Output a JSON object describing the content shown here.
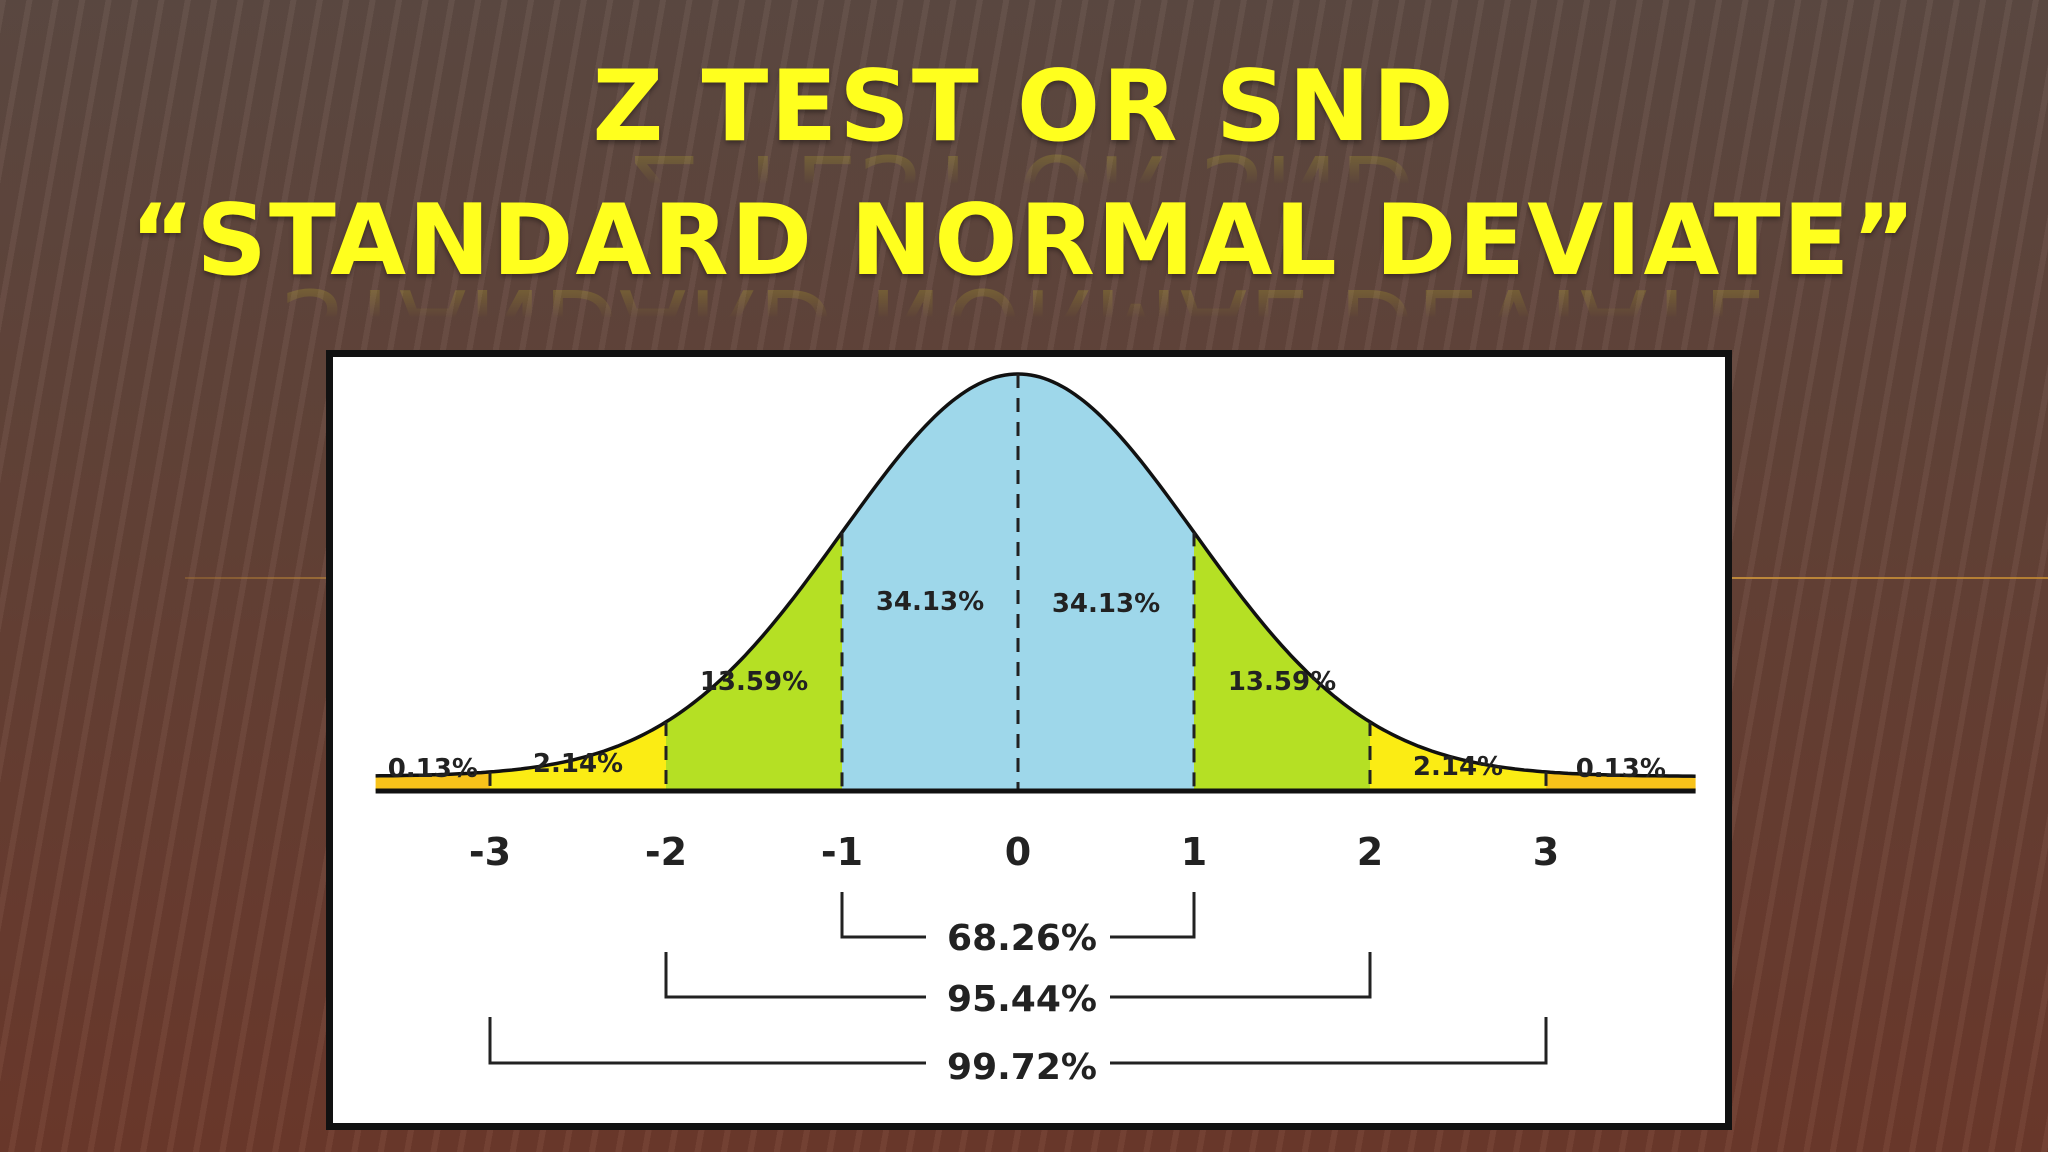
{
  "slide": {
    "title_line1": "Z TEST OR SND",
    "title_line2": "“STANDARD NORMAL DEVIATE”"
  },
  "colors": {
    "title": "#ffff1e",
    "center": "#9ed7ea",
    "inner": "#b5e024",
    "outer": "#fbec14",
    "tail": "#f7c21a"
  },
  "chart_data": {
    "type": "area",
    "title": "",
    "xlabel": "",
    "ylabel": "",
    "xlim": [
      -3.65,
      3.85
    ],
    "x_ticks": [
      "-3",
      "-2",
      "-1",
      "0",
      "1",
      "2",
      "3"
    ],
    "x_tick_values": [
      -3,
      -2,
      -1,
      0,
      1,
      2,
      3
    ],
    "segments": [
      {
        "from": -3.65,
        "to": -3,
        "label": "0.13%",
        "value": 0.13,
        "color": "tail"
      },
      {
        "from": -3,
        "to": -2,
        "label": "2.14%",
        "value": 2.14,
        "color": "outer"
      },
      {
        "from": -2,
        "to": -1,
        "label": "13.59%",
        "value": 13.59,
        "color": "inner"
      },
      {
        "from": -1,
        "to": 0,
        "label": "34.13%",
        "value": 34.13,
        "color": "center"
      },
      {
        "from": 0,
        "to": 1,
        "label": "34.13%",
        "value": 34.13,
        "color": "center"
      },
      {
        "from": 1,
        "to": 2,
        "label": "13.59%",
        "value": 13.59,
        "color": "inner"
      },
      {
        "from": 2,
        "to": 3,
        "label": "2.14%",
        "value": 2.14,
        "color": "outer"
      },
      {
        "from": 3,
        "to": 3.85,
        "label": "0.13%",
        "value": 0.13,
        "color": "tail"
      }
    ],
    "brackets": [
      {
        "from": -1,
        "to": 1,
        "label": "68.26%",
        "value": 68.26
      },
      {
        "from": -2,
        "to": 2,
        "label": "95.44%",
        "value": 95.44
      },
      {
        "from": -3,
        "to": 3,
        "label": "99.72%",
        "value": 99.72
      }
    ]
  }
}
